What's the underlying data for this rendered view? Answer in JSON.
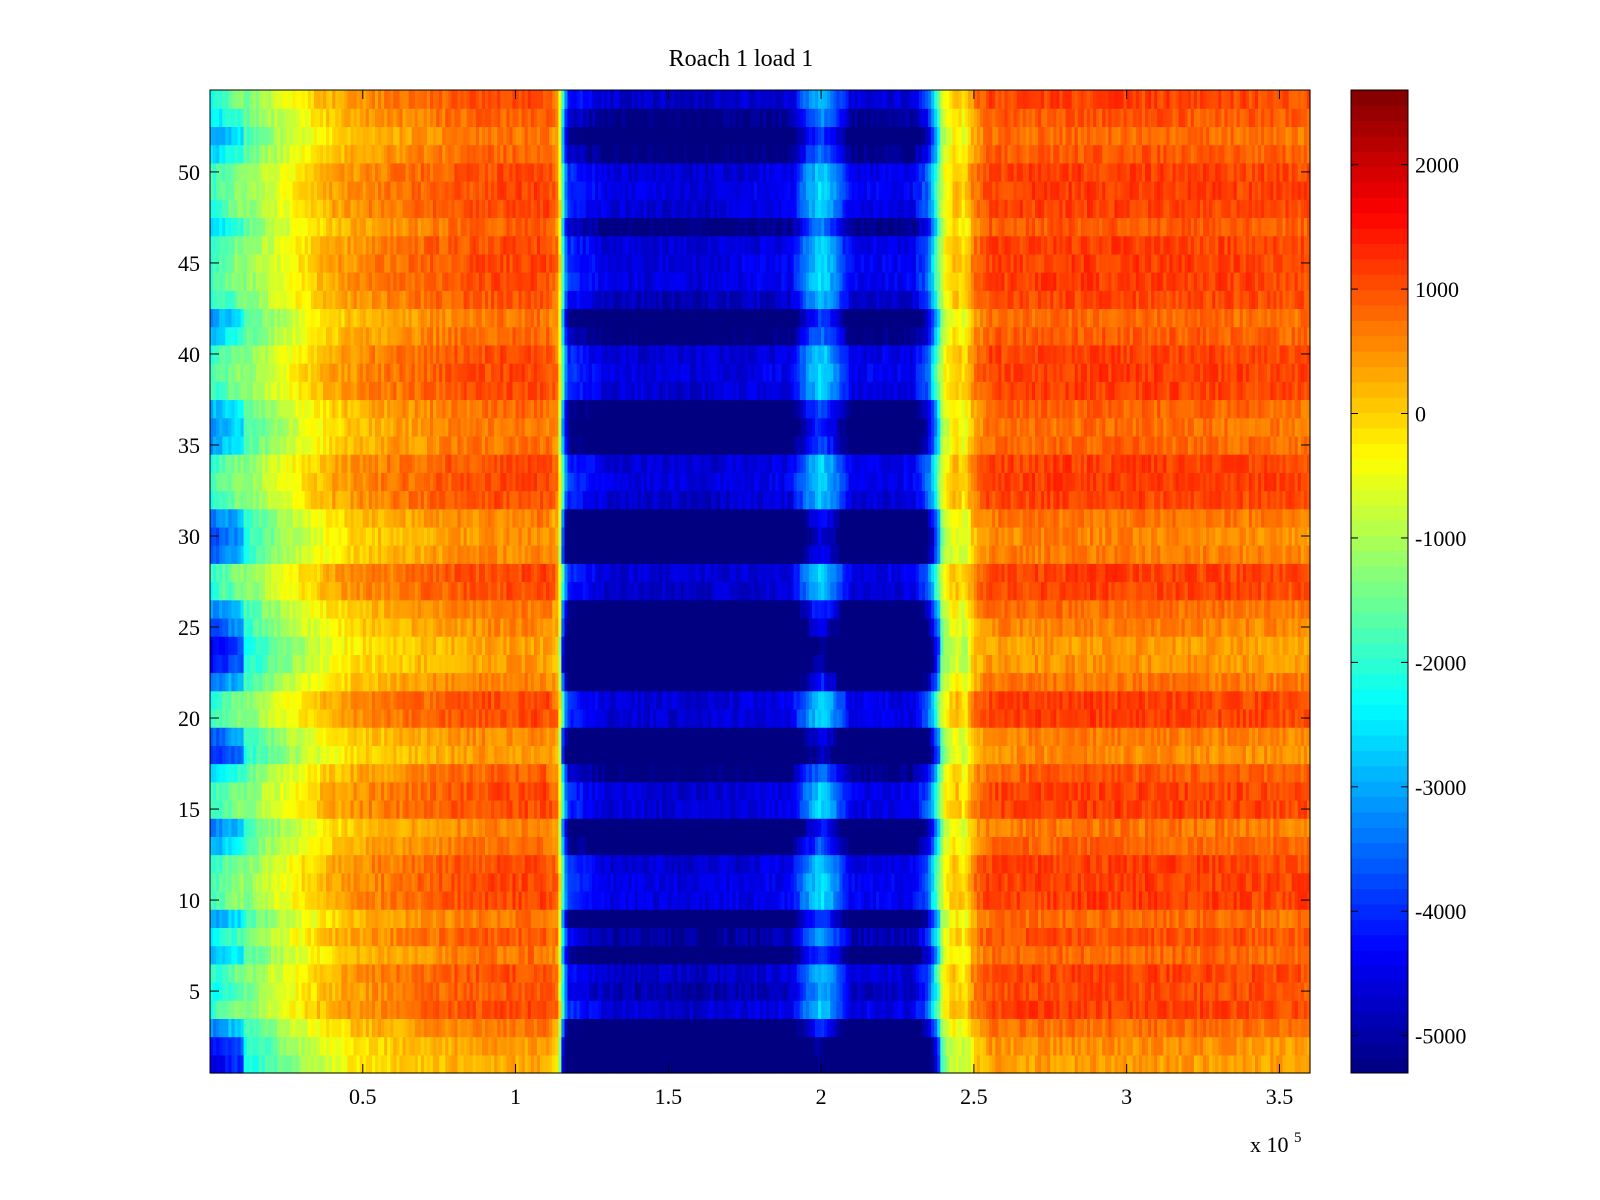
{
  "chart_data": {
    "type": "heatmap",
    "title": "Roach 1 load 1",
    "xlabel": "",
    "ylabel": "",
    "x_multiplier_label": "x 10",
    "x_multiplier_exponent": "5",
    "x_multiplier": 100000,
    "xlim": [
      0,
      3.6
    ],
    "ylim": [
      0.5,
      54.5
    ],
    "x_ticks": [
      0.5,
      1,
      1.5,
      2,
      2.5,
      3,
      3.5
    ],
    "x_tick_labels": [
      "0.5",
      "1",
      "1.5",
      "2",
      "2.5",
      "3",
      "3.5"
    ],
    "y_ticks": [
      5,
      10,
      15,
      20,
      25,
      30,
      35,
      40,
      45,
      50
    ],
    "y_tick_labels": [
      "5",
      "10",
      "15",
      "20",
      "25",
      "30",
      "35",
      "40",
      "45",
      "50"
    ],
    "rows": 54,
    "colormap": "jet",
    "colorbar": {
      "range": [
        -5300,
        2600
      ],
      "ticks": [
        -5000,
        -4000,
        -3000,
        -2000,
        -1000,
        0,
        1000,
        2000
      ],
      "tick_labels": [
        "-5000",
        "-4000",
        "-3000",
        "-2000",
        "-1000",
        "0",
        "1000",
        "2000"
      ],
      "placement": "right"
    },
    "grid": false,
    "x_profile": [
      {
        "x": 0.0,
        "value": -2300
      },
      {
        "x": 0.1,
        "value": -1600
      },
      {
        "x": 0.2,
        "value": -900
      },
      {
        "x": 0.3,
        "value": -300
      },
      {
        "x": 0.4,
        "value": 200
      },
      {
        "x": 0.5,
        "value": 450
      },
      {
        "x": 0.65,
        "value": 650
      },
      {
        "x": 0.8,
        "value": 850
      },
      {
        "x": 0.95,
        "value": 950
      },
      {
        "x": 1.1,
        "value": 1000
      },
      {
        "x": 1.14,
        "value": 600
      },
      {
        "x": 1.155,
        "value": -2200
      },
      {
        "x": 1.17,
        "value": -4300
      },
      {
        "x": 1.3,
        "value": -4900
      },
      {
        "x": 1.6,
        "value": -5000
      },
      {
        "x": 1.9,
        "value": -4800
      },
      {
        "x": 1.96,
        "value": -3500
      },
      {
        "x": 2.0,
        "value": -2900
      },
      {
        "x": 2.04,
        "value": -3500
      },
      {
        "x": 2.1,
        "value": -4800
      },
      {
        "x": 2.3,
        "value": -4800
      },
      {
        "x": 2.35,
        "value": -3900
      },
      {
        "x": 2.375,
        "value": -2400
      },
      {
        "x": 2.4,
        "value": -600
      },
      {
        "x": 2.44,
        "value": 100
      },
      {
        "x": 2.47,
        "value": -300
      },
      {
        "x": 2.5,
        "value": 600
      },
      {
        "x": 2.55,
        "value": 1000
      },
      {
        "x": 2.8,
        "value": 1050
      },
      {
        "x": 3.1,
        "value": 1050
      },
      {
        "x": 3.4,
        "value": 1000
      },
      {
        "x": 3.6,
        "value": 950
      }
    ],
    "row_offsets": [
      {
        "row": 1,
        "value": -2300
      },
      {
        "row": 2,
        "value": -2000
      },
      {
        "row": 3,
        "value": -1000
      },
      {
        "row": 4,
        "value": 300
      },
      {
        "row": 5,
        "value": 0
      },
      {
        "row": 6,
        "value": 200
      },
      {
        "row": 7,
        "value": -800
      },
      {
        "row": 8,
        "value": -100
      },
      {
        "row": 9,
        "value": -900
      },
      {
        "row": 10,
        "value": 400
      },
      {
        "row": 11,
        "value": 400
      },
      {
        "row": 12,
        "value": 300
      },
      {
        "row": 13,
        "value": -700
      },
      {
        "row": 14,
        "value": -1200
      },
      {
        "row": 15,
        "value": 300
      },
      {
        "row": 16,
        "value": 300
      },
      {
        "row": 17,
        "value": -400
      },
      {
        "row": 18,
        "value": -1800
      },
      {
        "row": 19,
        "value": -1400
      },
      {
        "row": 20,
        "value": 300
      },
      {
        "row": 21,
        "value": 300
      },
      {
        "row": 22,
        "value": -1200
      },
      {
        "row": 23,
        "value": -2000
      },
      {
        "row": 24,
        "value": -2200
      },
      {
        "row": 25,
        "value": -1500
      },
      {
        "row": 26,
        "value": -1000
      },
      {
        "row": 27,
        "value": 200
      },
      {
        "row": 28,
        "value": 300
      },
      {
        "row": 29,
        "value": -1400
      },
      {
        "row": 30,
        "value": -1600
      },
      {
        "row": 31,
        "value": -1200
      },
      {
        "row": 32,
        "value": 200
      },
      {
        "row": 33,
        "value": 400
      },
      {
        "row": 34,
        "value": 300
      },
      {
        "row": 35,
        "value": -800
      },
      {
        "row": 36,
        "value": -1000
      },
      {
        "row": 37,
        "value": -700
      },
      {
        "row": 38,
        "value": 300
      },
      {
        "row": 39,
        "value": 400
      },
      {
        "row": 40,
        "value": 300
      },
      {
        "row": 41,
        "value": -500
      },
      {
        "row": 42,
        "value": -900
      },
      {
        "row": 43,
        "value": 100
      },
      {
        "row": 44,
        "value": 400
      },
      {
        "row": 45,
        "value": 400
      },
      {
        "row": 46,
        "value": 300
      },
      {
        "row": 47,
        "value": -400
      },
      {
        "row": 48,
        "value": 300
      },
      {
        "row": 49,
        "value": 400
      },
      {
        "row": 50,
        "value": 300
      },
      {
        "row": 51,
        "value": -400
      },
      {
        "row": 52,
        "value": -900
      },
      {
        "row": 53,
        "value": -300
      },
      {
        "row": 54,
        "value": 200
      }
    ]
  }
}
